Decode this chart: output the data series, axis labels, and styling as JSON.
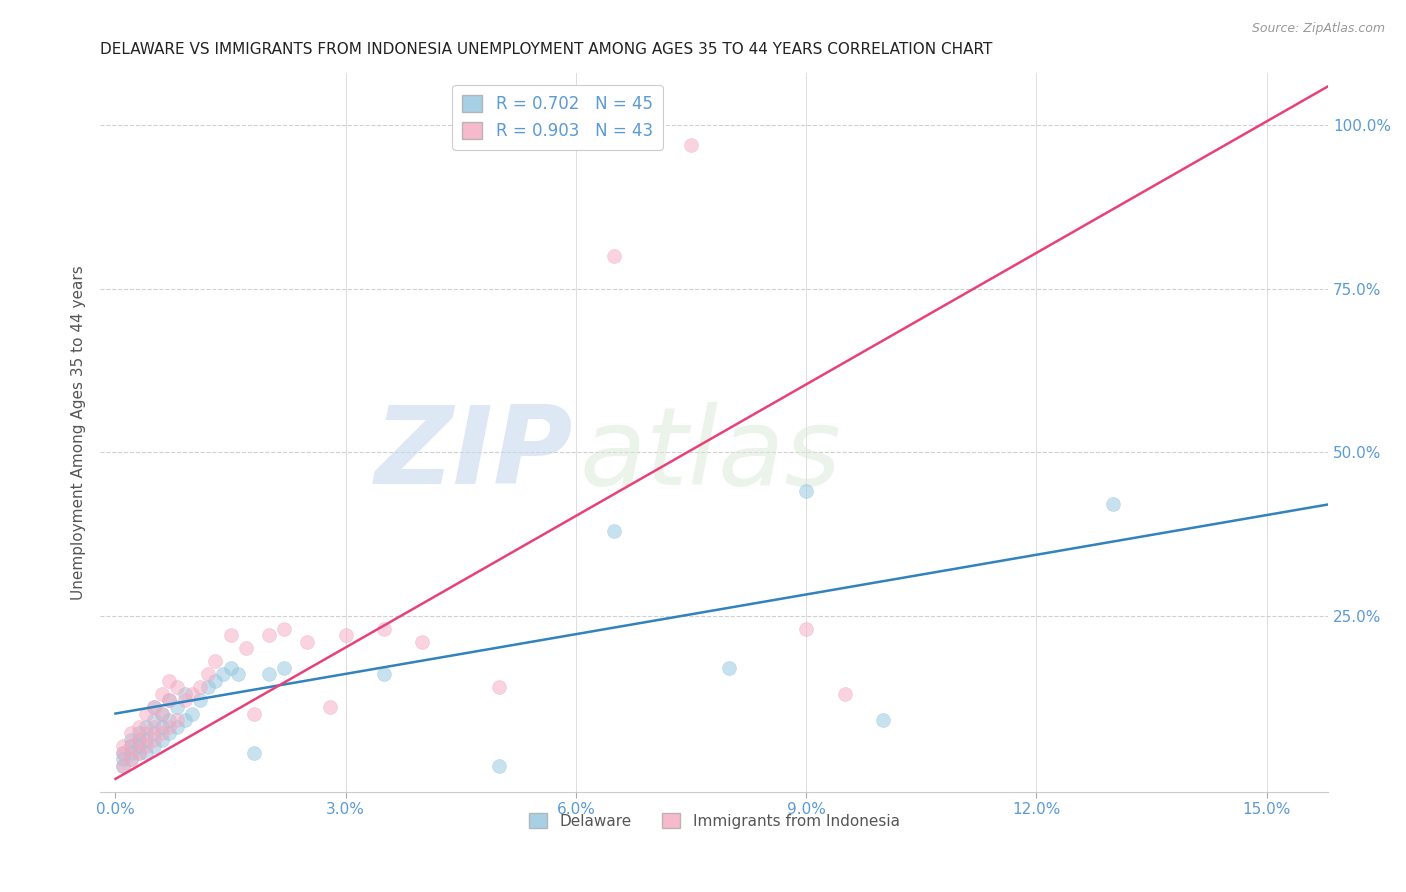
{
  "title": "DELAWARE VS IMMIGRANTS FROM INDONESIA UNEMPLOYMENT AMONG AGES 35 TO 44 YEARS CORRELATION CHART",
  "source": "Source: ZipAtlas.com",
  "xlabel_ticks": [
    0.0,
    0.03,
    0.06,
    0.09,
    0.12,
    0.15
  ],
  "xlabel_tick_labels": [
    "0.0%",
    "3.0%",
    "6.0%",
    "9.0%",
    "12.0%",
    "15.0%"
  ],
  "ylabel_ticks": [
    0.25,
    0.5,
    0.75,
    1.0
  ],
  "ylabel_tick_labels": [
    "25.0%",
    "50.0%",
    "75.0%",
    "100.0%"
  ],
  "xlim": [
    -0.002,
    0.158
  ],
  "ylim": [
    -0.02,
    1.08
  ],
  "ylabel": "Unemployment Among Ages 35 to 44 years",
  "watermark_zip": "ZIP",
  "watermark_atlas": "atlas",
  "delaware_scatter_x": [
    0.001,
    0.001,
    0.001,
    0.002,
    0.002,
    0.002,
    0.002,
    0.003,
    0.003,
    0.003,
    0.003,
    0.004,
    0.004,
    0.004,
    0.005,
    0.005,
    0.005,
    0.005,
    0.006,
    0.006,
    0.006,
    0.007,
    0.007,
    0.007,
    0.008,
    0.008,
    0.009,
    0.009,
    0.01,
    0.011,
    0.012,
    0.013,
    0.014,
    0.015,
    0.016,
    0.018,
    0.02,
    0.022,
    0.035,
    0.05,
    0.065,
    0.08,
    0.09,
    0.1,
    0.13
  ],
  "delaware_scatter_y": [
    0.02,
    0.03,
    0.04,
    0.03,
    0.04,
    0.05,
    0.06,
    0.04,
    0.05,
    0.06,
    0.07,
    0.04,
    0.06,
    0.08,
    0.05,
    0.07,
    0.09,
    0.11,
    0.06,
    0.08,
    0.1,
    0.07,
    0.09,
    0.12,
    0.08,
    0.11,
    0.09,
    0.13,
    0.1,
    0.12,
    0.14,
    0.15,
    0.16,
    0.17,
    0.16,
    0.04,
    0.16,
    0.17,
    0.16,
    0.02,
    0.38,
    0.17,
    0.44,
    0.09,
    0.42
  ],
  "indonesia_scatter_x": [
    0.001,
    0.001,
    0.001,
    0.002,
    0.002,
    0.002,
    0.003,
    0.003,
    0.003,
    0.004,
    0.004,
    0.004,
    0.005,
    0.005,
    0.005,
    0.006,
    0.006,
    0.006,
    0.007,
    0.007,
    0.007,
    0.008,
    0.008,
    0.009,
    0.01,
    0.011,
    0.012,
    0.013,
    0.015,
    0.017,
    0.018,
    0.02,
    0.022,
    0.025,
    0.028,
    0.03,
    0.035,
    0.04,
    0.05,
    0.065,
    0.075,
    0.09,
    0.095
  ],
  "indonesia_scatter_y": [
    0.02,
    0.04,
    0.05,
    0.03,
    0.05,
    0.07,
    0.04,
    0.06,
    0.08,
    0.05,
    0.07,
    0.1,
    0.06,
    0.08,
    0.11,
    0.07,
    0.1,
    0.13,
    0.08,
    0.12,
    0.15,
    0.09,
    0.14,
    0.12,
    0.13,
    0.14,
    0.16,
    0.18,
    0.22,
    0.2,
    0.1,
    0.22,
    0.23,
    0.21,
    0.11,
    0.22,
    0.23,
    0.21,
    0.14,
    0.8,
    0.97,
    0.23,
    0.13
  ],
  "delaware_line_x": [
    0.0,
    0.158
  ],
  "delaware_line_y": [
    0.1,
    0.42
  ],
  "indonesia_line_x": [
    0.0,
    0.158
  ],
  "indonesia_line_y": [
    0.0,
    1.06
  ],
  "delaware_color": "#92c5de",
  "indonesia_color": "#f4a9c0",
  "delaware_line_color": "#3182bd",
  "indonesia_line_color": "#e8417a",
  "background_color": "#ffffff",
  "grid_color": "#d0d0d0",
  "title_color": "#222222",
  "axis_label_color": "#555555",
  "right_axis_color": "#5b9bd5",
  "scatter_size": 100,
  "scatter_alpha": 0.5,
  "scatter_linewidth": 0.5,
  "legend_label_blue": "R = 0.702   N = 45",
  "legend_label_pink": "R = 0.903   N = 43",
  "bottom_legend_delaware": "Delaware",
  "bottom_legend_indonesia": "Immigrants from Indonesia"
}
